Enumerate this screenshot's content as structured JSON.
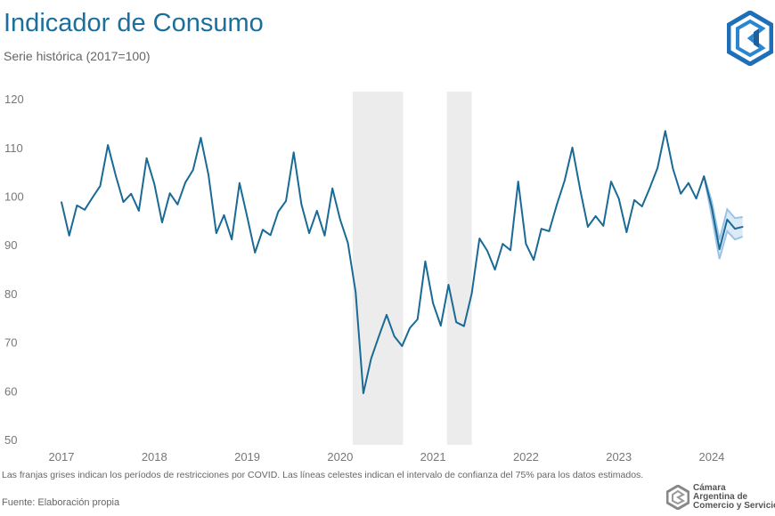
{
  "header": {
    "title": "Indicador de Consumo",
    "subtitle": "Serie histórica (2017=100)"
  },
  "footer": {
    "note": "Las franjas grises indican los períodos de restricciones por COVID. Las líneas celestes indican el intervalo de confianza del 75% para los datos estimados.",
    "source": "Fuente: Elaboración propia",
    "org_logo_lines": [
      "Cámara",
      "Argentina de",
      "Comercio y Servicios"
    ]
  },
  "colors": {
    "line": "#1a6a96",
    "ci": "#9cc3e6",
    "band": "#ececec",
    "title": "#1a6f9e",
    "logo": "#1f6fb8"
  },
  "chart_data": {
    "type": "line",
    "title": "Indicador de Consumo",
    "subtitle": "Serie histórica (2017=100)",
    "x_start": "2017-01",
    "frequency": "monthly",
    "ylim": [
      50,
      120
    ],
    "yticks": [
      50,
      60,
      70,
      80,
      90,
      100,
      110,
      120
    ],
    "xticks": [
      "2017",
      "2018",
      "2019",
      "2020",
      "2021",
      "2022",
      "2023",
      "2024"
    ],
    "grid": false,
    "series": [
      {
        "values": [
          98.8,
          91.9,
          98.1,
          97.2,
          99.7,
          102.1,
          110.5,
          104.3,
          98.8,
          100.5,
          97.0,
          107.8,
          102.5,
          94.6,
          100.6,
          98.3,
          102.8,
          105.4,
          112.0,
          104.3,
          92.4,
          96.1,
          91.1,
          102.7,
          95.7,
          88.4,
          93.1,
          92.0,
          96.8,
          99.0,
          109.0,
          98.3,
          92.4,
          97.0,
          91.9,
          101.6,
          95.2,
          90.4,
          80.3,
          59.5,
          66.6,
          71.2,
          75.6,
          71.2,
          69.2,
          72.9,
          74.7,
          86.6,
          78.0,
          73.4,
          81.8,
          74.1,
          73.3,
          80.0,
          91.3,
          88.8,
          84.9,
          90.2,
          88.9,
          103.0,
          90.2,
          86.9,
          93.3,
          92.8,
          98.3,
          103.2,
          110.0,
          101.4,
          93.7,
          95.9,
          93.9,
          103.0,
          99.5,
          92.6,
          99.2,
          97.9,
          101.7,
          105.8,
          113.4,
          105.6,
          100.5,
          102.7,
          99.5,
          104.1,
          97.7,
          89.1,
          95.2,
          93.3,
          93.7
        ]
      }
    ],
    "confidence_interval": {
      "level": "75%",
      "start": "2023-12",
      "upper": [
        104.1,
        99.0,
        91.0,
        97.3,
        95.5,
        95.7
      ],
      "lower": [
        104.1,
        96.0,
        87.1,
        92.8,
        91.1,
        91.7
      ]
    },
    "shaded_periods": [
      {
        "start": "2020-02-20",
        "end": "2020-09-05"
      },
      {
        "start": "2021-02-25",
        "end": "2021-06-01"
      }
    ]
  }
}
